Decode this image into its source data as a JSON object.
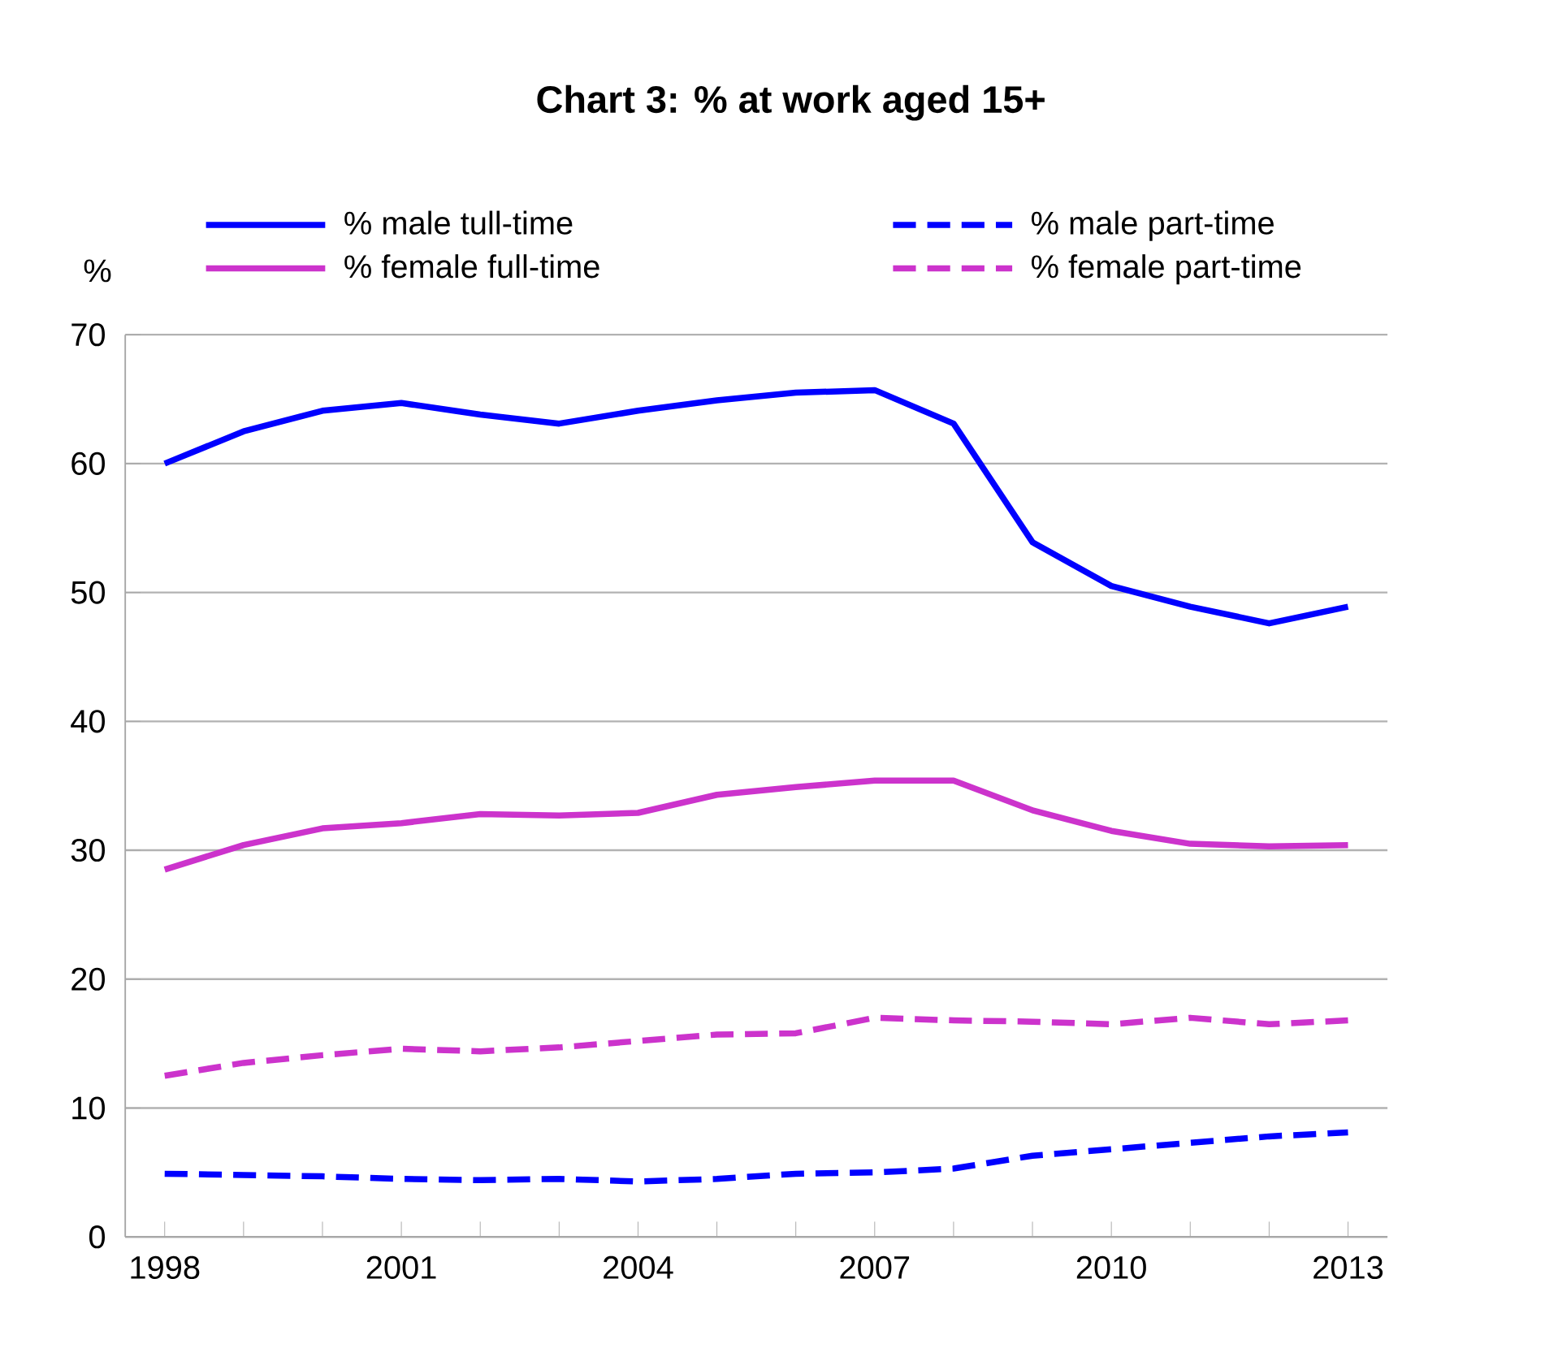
{
  "chart_data": {
    "type": "line",
    "title": "Chart 3: % at work aged 15+",
    "ylabel": "%",
    "categories": [
      "1998",
      null,
      null,
      "2001",
      null,
      null,
      "2004",
      null,
      null,
      "2007",
      null,
      null,
      "2010",
      null,
      null,
      "2013"
    ],
    "series": [
      {
        "name": "% male tull-time",
        "color": "#0000ff",
        "line_style": "solid",
        "values": [
          60,
          62.5,
          64.1,
          64.7,
          63.8,
          63.1,
          64.1,
          64.9,
          65.5,
          65.7,
          63.1,
          53.9,
          50.5,
          48.9,
          47.6,
          48.9
        ]
      },
      {
        "name": "% male part-time",
        "color": "#0000ff",
        "line_style": "dashed",
        "values": [
          4.9,
          4.8,
          4.7,
          4.5,
          4.4,
          4.5,
          4.3,
          4.5,
          4.9,
          5.0,
          5.3,
          6.3,
          6.8,
          7.3,
          7.8,
          8.1
        ]
      },
      {
        "name": "% female full-time",
        "color": "#cc33cc",
        "line_style": "solid",
        "values": [
          28.5,
          30.4,
          31.7,
          32.1,
          32.8,
          32.7,
          32.9,
          34.3,
          34.9,
          35.4,
          35.4,
          33.1,
          31.5,
          30.5,
          30.3,
          30.4
        ]
      },
      {
        "name": "% female part-time",
        "color": "#cc33cc",
        "line_style": "dashed",
        "values": [
          12.5,
          13.5,
          14.1,
          14.6,
          14.4,
          14.7,
          15.2,
          15.7,
          15.8,
          17.0,
          16.8,
          16.7,
          16.5,
          17.0,
          16.5,
          16.8
        ]
      }
    ],
    "ylim": [
      0,
      70
    ],
    "yticks": [
      0,
      10,
      20,
      30,
      40,
      50,
      60,
      70
    ],
    "grid": "y",
    "legend": "top",
    "marker": "none"
  }
}
